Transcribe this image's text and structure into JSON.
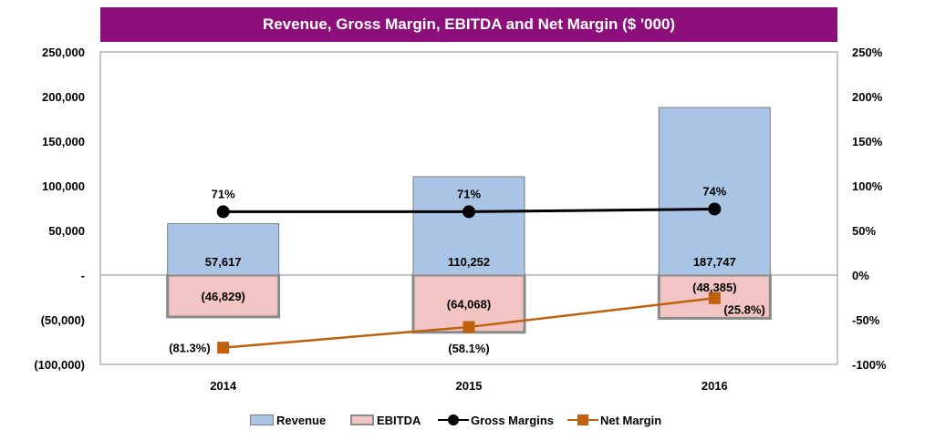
{
  "colors": {
    "title_bg": "#8d0f7b",
    "revenue_fill": "#a9c4e4",
    "revenue_stroke": "#7d7d7d",
    "ebitda_fill": "#f2c4c4",
    "ebitda_stroke": "#8a8a8a",
    "gross_margin": "#000000",
    "net_margin": "#c0600c"
  },
  "chart_data": {
    "type": "bar",
    "title": "Revenue, Gross Margin, EBITDA and Net Margin ($ '000)",
    "categories": [
      "2014",
      "2015",
      "2016"
    ],
    "y_left": {
      "range": [
        -100000,
        250000
      ],
      "ticks": [
        -100000,
        -50000,
        0,
        50000,
        100000,
        150000,
        200000,
        250000
      ],
      "tick_labels": [
        "(100,000)",
        "(50,000)",
        "-",
        "50,000",
        "100,000",
        "150,000",
        "200,000",
        "250,000"
      ]
    },
    "y_right": {
      "range": [
        -100,
        250
      ],
      "ticks": [
        -100,
        -50,
        0,
        50,
        100,
        150,
        200,
        250
      ],
      "tick_labels": [
        "-100%",
        "-50%",
        "0%",
        "50%",
        "100%",
        "150%",
        "200%",
        "250%"
      ]
    },
    "series": [
      {
        "name": "Revenue",
        "kind": "bar",
        "axis": "left",
        "values": [
          57617,
          110252,
          187747
        ],
        "labels": [
          "57,617",
          "110,252",
          "187,747"
        ]
      },
      {
        "name": "EBITDA",
        "kind": "bar",
        "axis": "left",
        "values": [
          -46829,
          -64068,
          -48385
        ],
        "labels": [
          "(46,829)",
          "(64,068)",
          "(48,385)"
        ]
      },
      {
        "name": "Gross Margins",
        "kind": "line",
        "marker": "circle",
        "axis": "right",
        "values": [
          71,
          71,
          74
        ],
        "labels": [
          "71%",
          "71%",
          "74%"
        ]
      },
      {
        "name": "Net Margin",
        "kind": "line",
        "marker": "square",
        "axis": "right",
        "values": [
          -81.3,
          -58.1,
          -25.8
        ],
        "labels": [
          "(81.3%)",
          "(58.1%)",
          "(25.8%)"
        ]
      }
    ],
    "legend_position": "bottom",
    "grid": false
  }
}
